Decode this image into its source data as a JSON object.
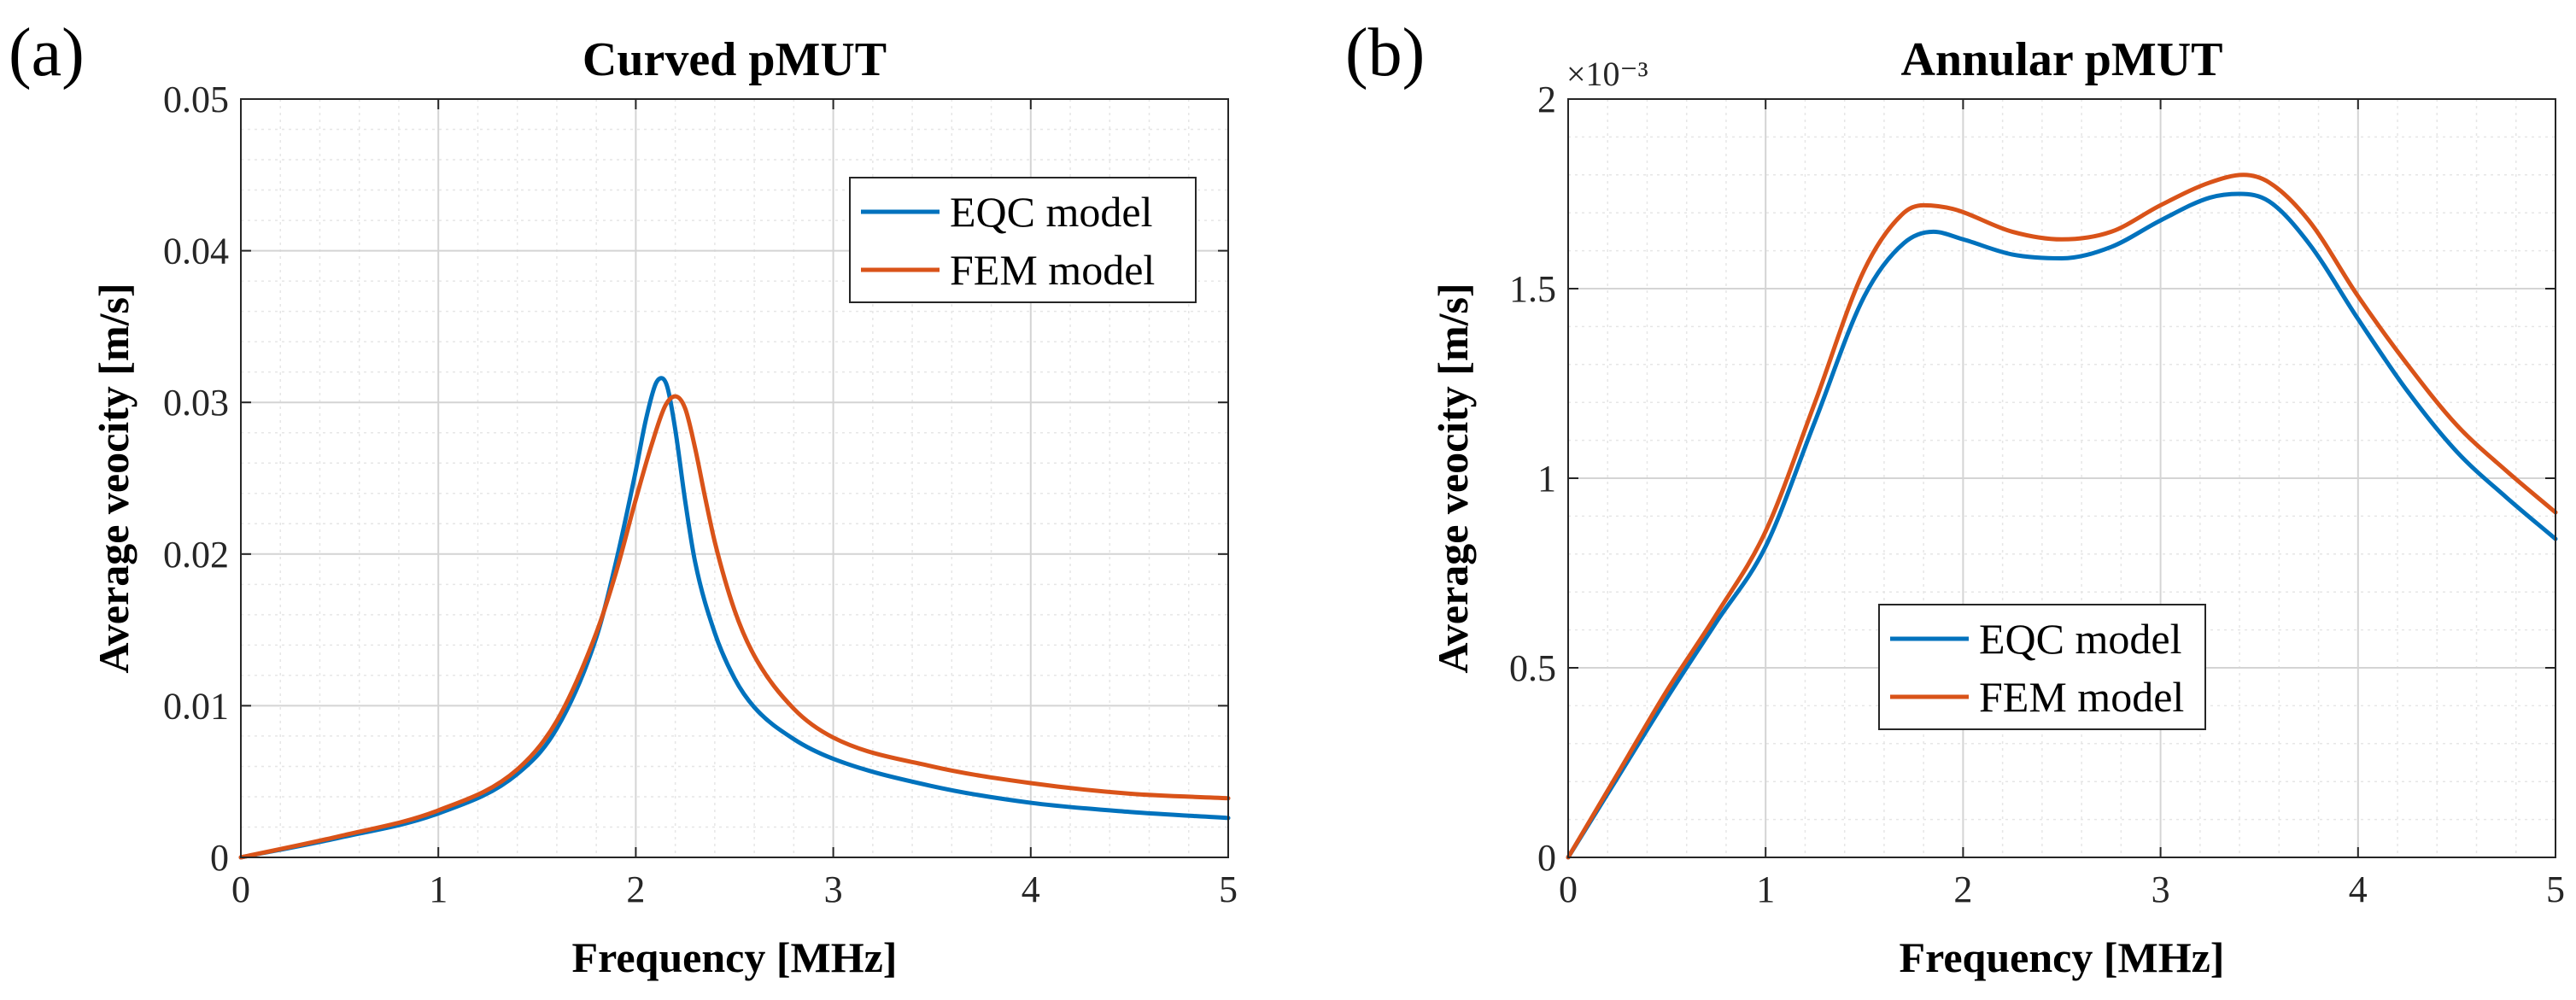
{
  "chart_data": [
    {
      "type": "line",
      "panel_label": "(a)",
      "title": "Curved pMUT",
      "xlabel": "Frequency [MHz]",
      "ylabel": "Average veocity [m/s]",
      "xlim": [
        0,
        5
      ],
      "ylim": [
        0,
        0.05
      ],
      "x_ticks": [
        0,
        1,
        2,
        3,
        4,
        5
      ],
      "x_tick_labels": [
        "0",
        "1",
        "2",
        "3",
        "4",
        "5"
      ],
      "y_ticks": [
        0,
        0.01,
        0.02,
        0.03,
        0.04,
        0.05
      ],
      "y_tick_labels": [
        "0",
        "0.01",
        "0.02",
        "0.03",
        "0.04",
        "0.05"
      ],
      "exponent_label": "",
      "grid": true,
      "minor_grid": true,
      "legend_position": "top-right",
      "series": [
        {
          "name": "EQC model",
          "color": "#0072BD",
          "x": [
            0,
            0.5,
            1.0,
            1.4,
            1.6,
            1.8,
            1.9,
            2.0,
            2.05,
            2.1,
            2.13,
            2.16,
            2.2,
            2.25,
            2.3,
            2.4,
            2.5,
            2.6,
            2.8,
            3.0,
            3.5,
            4.0,
            4.5,
            5.0
          ],
          "y": [
            0,
            0.0013,
            0.0029,
            0.0055,
            0.0085,
            0.0145,
            0.0195,
            0.0255,
            0.0288,
            0.0312,
            0.0316,
            0.031,
            0.0282,
            0.0235,
            0.0195,
            0.0148,
            0.0118,
            0.0099,
            0.0078,
            0.0065,
            0.0047,
            0.0036,
            0.003,
            0.0026
          ]
        },
        {
          "name": "FEM model",
          "color": "#D95319",
          "x": [
            0,
            0.5,
            1.0,
            1.4,
            1.6,
            1.8,
            1.9,
            2.0,
            2.08,
            2.15,
            2.2,
            2.25,
            2.3,
            2.35,
            2.4,
            2.5,
            2.6,
            2.8,
            3.0,
            3.5,
            4.0,
            4.5,
            5.0
          ],
          "y": [
            0,
            0.0014,
            0.0031,
            0.0058,
            0.009,
            0.0148,
            0.0188,
            0.0236,
            0.0272,
            0.0298,
            0.0304,
            0.0296,
            0.027,
            0.0238,
            0.0208,
            0.0163,
            0.0133,
            0.0098,
            0.0079,
            0.006,
            0.0049,
            0.0042,
            0.0039
          ]
        }
      ]
    },
    {
      "type": "line",
      "panel_label": "(b)",
      "title": "Annular pMUT",
      "xlabel": "Frequency [MHz]",
      "ylabel": "Average veocity [m/s]",
      "xlim": [
        0,
        5
      ],
      "ylim": [
        0,
        2
      ],
      "x_ticks": [
        0,
        1,
        2,
        3,
        4,
        5
      ],
      "x_tick_labels": [
        "0",
        "1",
        "2",
        "3",
        "4",
        "5"
      ],
      "y_ticks": [
        0,
        0.5,
        1,
        1.5,
        2
      ],
      "y_tick_labels": [
        "0",
        "0.5",
        "1",
        "1.5",
        "2"
      ],
      "exponent_label": "×10⁻³",
      "grid": true,
      "minor_grid": true,
      "legend_position": "bottom-center",
      "series": [
        {
          "name": "EQC model",
          "color": "#0072BD",
          "x": [
            0,
            0.25,
            0.5,
            0.75,
            1.0,
            1.25,
            1.5,
            1.7,
            1.85,
            2.0,
            2.25,
            2.5,
            2.75,
            3.0,
            3.25,
            3.4,
            3.55,
            3.75,
            4.0,
            4.25,
            4.5,
            4.75,
            5.0
          ],
          "y": [
            0,
            0.21,
            0.42,
            0.62,
            0.82,
            1.15,
            1.48,
            1.62,
            1.65,
            1.63,
            1.59,
            1.58,
            1.61,
            1.68,
            1.74,
            1.75,
            1.73,
            1.62,
            1.42,
            1.23,
            1.07,
            0.95,
            0.84
          ]
        },
        {
          "name": "FEM model",
          "color": "#D95319",
          "x": [
            0,
            0.25,
            0.5,
            0.75,
            1.0,
            1.25,
            1.5,
            1.7,
            1.8,
            1.95,
            2.25,
            2.5,
            2.75,
            3.0,
            3.25,
            3.42,
            3.55,
            3.75,
            4.0,
            4.25,
            4.5,
            4.75,
            5.0
          ],
          "y": [
            0,
            0.22,
            0.44,
            0.64,
            0.86,
            1.2,
            1.55,
            1.7,
            1.72,
            1.71,
            1.65,
            1.63,
            1.65,
            1.72,
            1.78,
            1.8,
            1.78,
            1.68,
            1.48,
            1.3,
            1.14,
            1.02,
            0.91
          ]
        }
      ]
    }
  ]
}
